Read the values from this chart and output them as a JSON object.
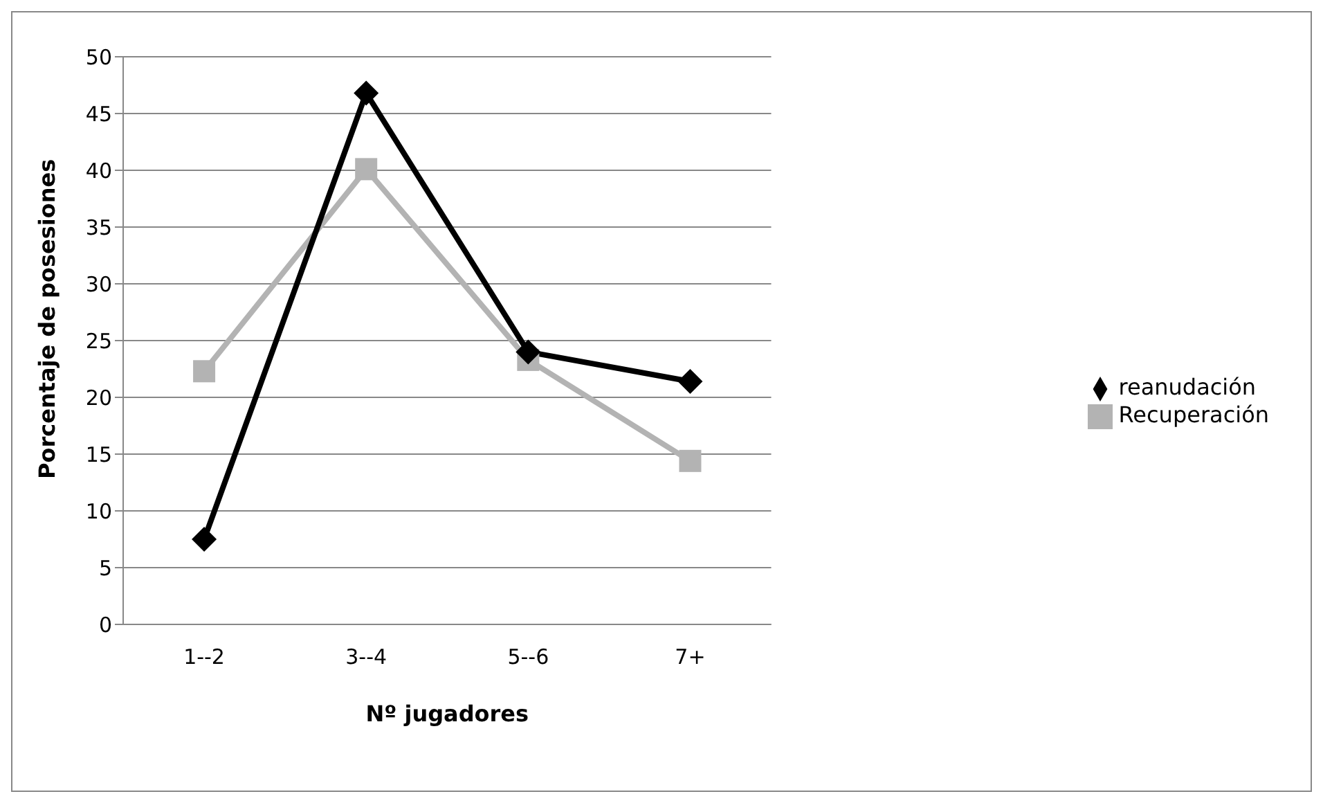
{
  "chart_data": {
    "type": "line",
    "xlabel": "Nº jugadores",
    "ylabel": "Porcentaje de posesiones",
    "categories": [
      "1--2",
      "3--4",
      "5--6",
      "7+"
    ],
    "series": [
      {
        "name": "reanudación",
        "color": "#000000",
        "values": [
          7.5,
          46.8,
          24.0,
          21.4
        ],
        "marker": "diamond"
      },
      {
        "name": "Recuperación",
        "color": "#b3b3b3",
        "values": [
          22.3,
          40.1,
          23.3,
          14.4
        ],
        "marker": "square"
      }
    ],
    "ylim": [
      0,
      50
    ],
    "yticks": [
      0,
      5,
      10,
      15,
      20,
      25,
      30,
      35,
      40,
      45,
      50
    ],
    "grid": "y",
    "legend": "right",
    "line_style": "solid"
  }
}
